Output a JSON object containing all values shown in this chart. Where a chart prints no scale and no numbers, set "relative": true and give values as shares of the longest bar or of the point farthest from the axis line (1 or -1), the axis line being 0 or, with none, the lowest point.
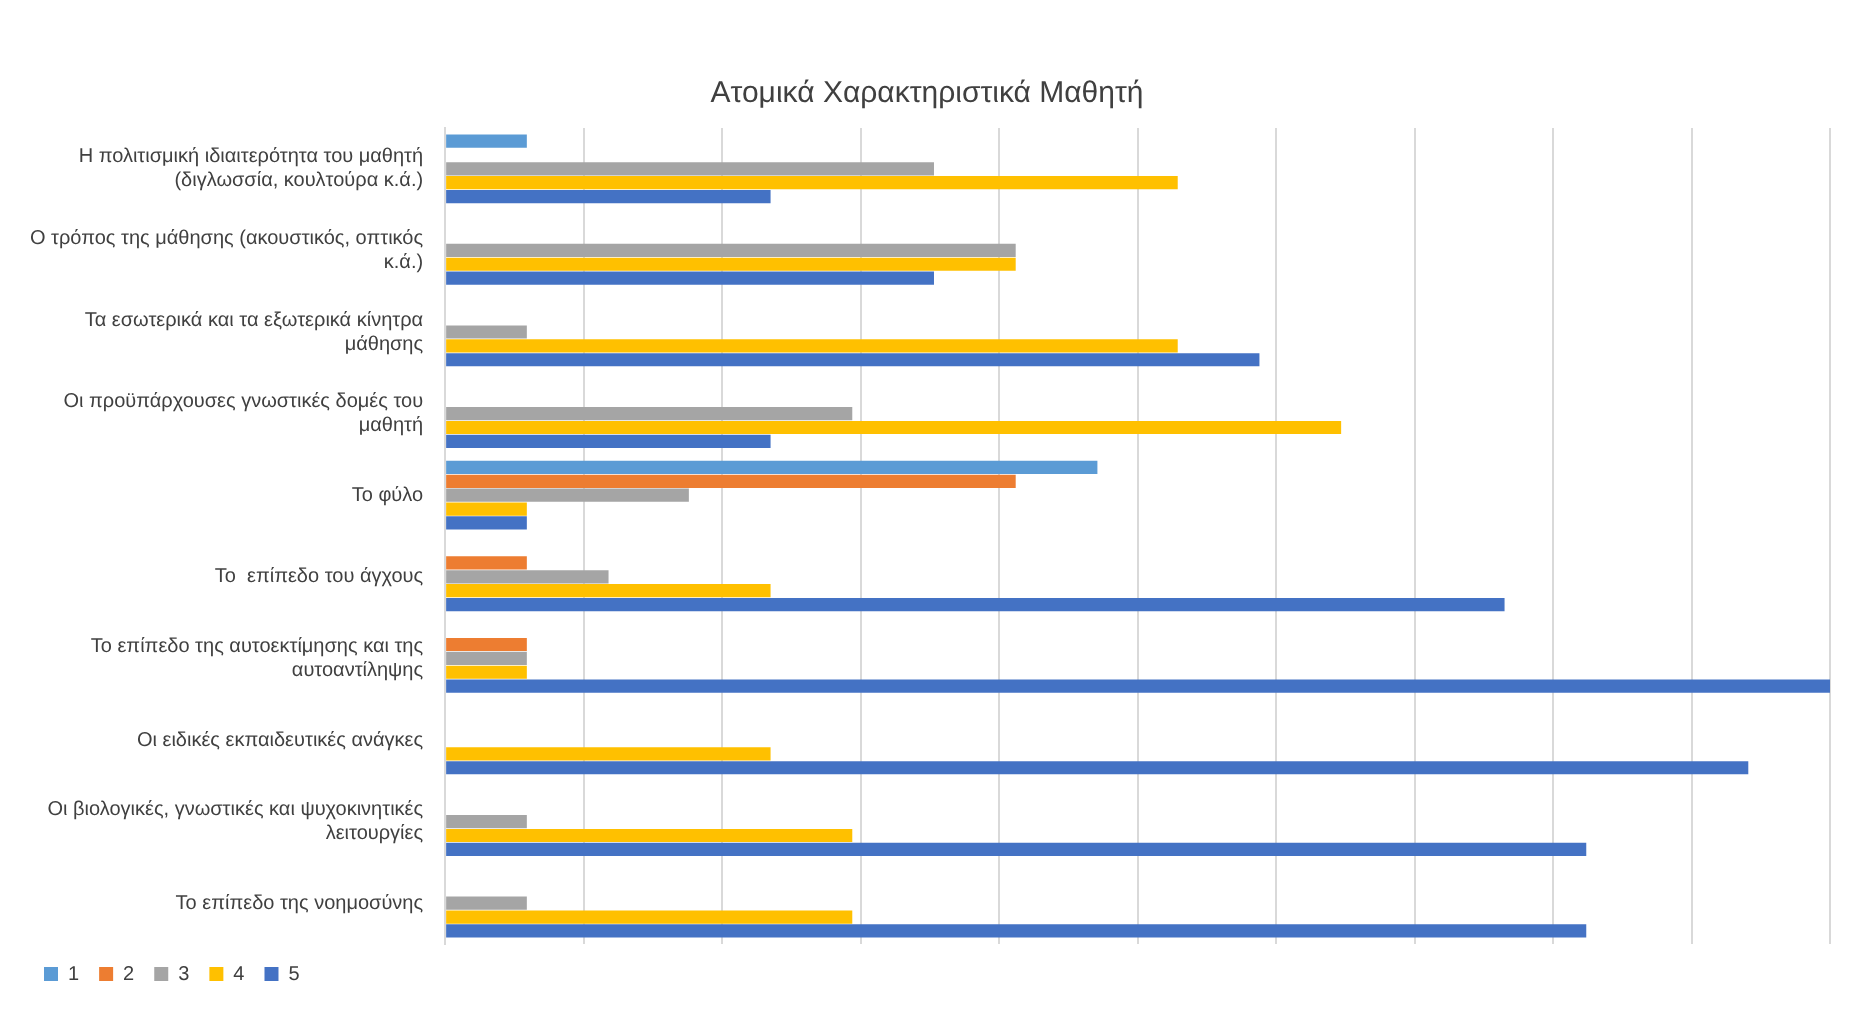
{
  "chart_data": {
    "type": "bar",
    "orientation": "horizontal",
    "relative": true,
    "title": "Ατομικά Χαρακτηριστικά Μαθητή",
    "grid": "x",
    "legend": "bottom",
    "categories": [
      "Η πολιτισμική ιδιαιτερότητα του μαθητή (διγλωσσία, κουλτούρα κ.ά.)",
      "Ο τρόπος της μάθησης (ακουστικός, οπτικός κ.ά.)",
      "Τα εσωτερικά και τα εξωτερικά κίνητρα μάθησης",
      "Οι προϋπάρχουσες γνωστικές δομές του μαθητή",
      "Το φύλο",
      "Το  επίπεδο του άγχους",
      "Το επίπεδο της αυτοεκτίμησης και της αυτοαντίληψης",
      "Οι ειδικές εκπαιδευτικές ανάγκες",
      "Οι βιολογικές, γνωστικές και ψυχοκινητικές λειτουργίες",
      "Το επίπεδο της νοημοσύνης"
    ],
    "series": [
      {
        "name": "1",
        "color": "#5b9bd5",
        "values": [
          0.059,
          0,
          0,
          0,
          0.471,
          0,
          0,
          0,
          0,
          0
        ]
      },
      {
        "name": "2",
        "color": "#ed7d31",
        "values": [
          0,
          0,
          0,
          0,
          0.412,
          0.059,
          0.059,
          0,
          0,
          0
        ]
      },
      {
        "name": "3",
        "color": "#a5a5a5",
        "values": [
          0.353,
          0.412,
          0.059,
          0.294,
          0.176,
          0.118,
          0.059,
          0,
          0.059,
          0.059
        ]
      },
      {
        "name": "4",
        "color": "#ffc000",
        "values": [
          0.529,
          0.412,
          0.529,
          0.647,
          0.059,
          0.235,
          0.059,
          0.235,
          0.294,
          0.294
        ]
      },
      {
        "name": "5",
        "color": "#4472c4",
        "values": [
          0.235,
          0.353,
          0.588,
          0.235,
          0.059,
          0.765,
          1,
          0.941,
          0.824,
          0.824
        ]
      }
    ]
  }
}
